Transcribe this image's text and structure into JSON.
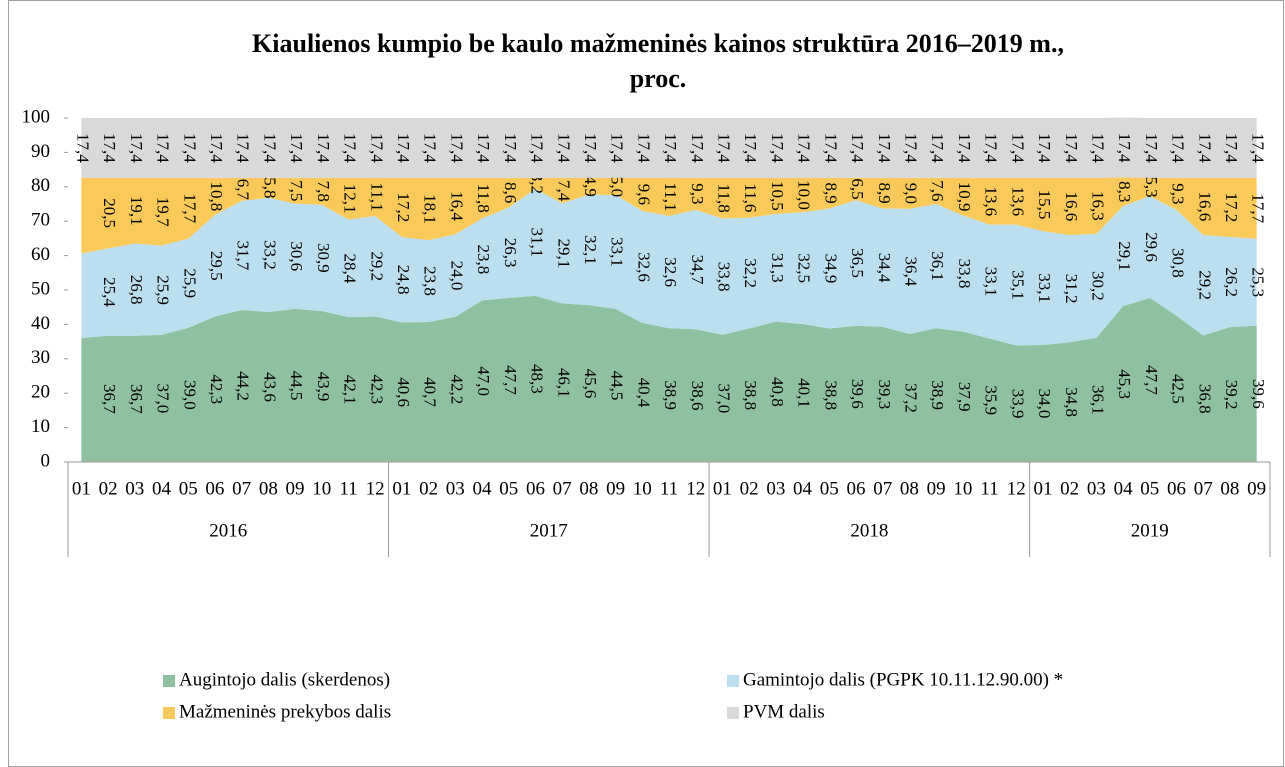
{
  "chart_data": {
    "type": "stacked-area",
    "title": "Kiaulienos kumpio be kaulo mažmeninės kainos struktūra 2016–2019 m.,",
    "subtitle": "proc.",
    "groups": [
      {
        "label": "2016",
        "categories": [
          "01",
          "02",
          "03",
          "04",
          "05",
          "06",
          "07",
          "08",
          "09",
          "10",
          "11",
          "12"
        ]
      },
      {
        "label": "2017",
        "categories": [
          "01",
          "02",
          "03",
          "04",
          "05",
          "06",
          "07",
          "08",
          "09",
          "10",
          "11",
          "12"
        ]
      },
      {
        "label": "2018",
        "categories": [
          "01",
          "02",
          "03",
          "04",
          "05",
          "06",
          "07",
          "08",
          "09",
          "10",
          "11",
          "12"
        ]
      },
      {
        "label": "2019",
        "categories": [
          "01",
          "02",
          "03",
          "04",
          "05",
          "06",
          "07",
          "08",
          "09"
        ]
      }
    ],
    "ylim": [
      0,
      100
    ],
    "yticks": [
      0,
      10,
      20,
      30,
      40,
      50,
      60,
      70,
      80,
      90,
      100
    ],
    "series": [
      {
        "name": "Augintojo dalis (skerdenos)",
        "color": "#8fc1a1",
        "values": [
          36.0,
          36.7,
          36.7,
          37.0,
          39.0,
          42.3,
          44.2,
          43.6,
          44.5,
          43.9,
          42.1,
          42.3,
          40.6,
          40.7,
          42.2,
          47.0,
          47.7,
          48.3,
          46.1,
          45.6,
          44.5,
          40.4,
          38.9,
          38.6,
          37.0,
          38.8,
          40.8,
          40.1,
          38.8,
          39.6,
          39.3,
          37.2,
          38.9,
          37.9,
          35.9,
          33.9,
          34.0,
          34.8,
          36.1,
          45.3,
          47.7,
          42.5,
          36.8,
          39.2,
          39.6
        ],
        "value_labels": [
          null,
          "36,7",
          "36,7",
          "37,0",
          "39,0",
          "42,3",
          "44,2",
          "43,6",
          "44,5",
          "43,9",
          "42,1",
          "42,3",
          "40,6",
          "40,7",
          "42,2",
          "47,0",
          "47,7",
          "48,3",
          "46,1",
          "45,6",
          "44,5",
          "40,4",
          "38,9",
          "38,6",
          "37,0",
          "38,8",
          "40,8",
          "40,1",
          "38,8",
          "39,6",
          "39,3",
          "37,2",
          "38,9",
          "37,9",
          "35,9",
          "33,9",
          "34,0",
          "34,8",
          "36,1",
          "45,3",
          "47,7",
          "42,5",
          "36,8",
          "39,2",
          "39,6"
        ]
      },
      {
        "name": "Gamintojo dalis (PGPK 10.11.12.90.00) *",
        "color": "#bcdff0",
        "values": [
          24.6,
          25.4,
          26.8,
          25.9,
          25.9,
          29.5,
          31.7,
          33.2,
          30.6,
          30.9,
          28.4,
          29.2,
          24.8,
          23.8,
          24.0,
          23.8,
          26.3,
          31.1,
          29.1,
          32.1,
          33.1,
          32.6,
          32.6,
          34.7,
          33.8,
          32.2,
          31.3,
          32.5,
          34.9,
          36.5,
          34.4,
          36.4,
          36.1,
          33.8,
          33.1,
          35.1,
          33.1,
          31.2,
          30.2,
          29.1,
          29.6,
          30.8,
          29.2,
          26.2,
          25.3
        ],
        "value_labels": [
          null,
          "25,4",
          "26,8",
          "25,9",
          "25,9",
          "29,5",
          "31,7",
          "33,2",
          "30,6",
          "30,9",
          "28,4",
          "29,2",
          "24,8",
          "23,8",
          "24,0",
          "23,8",
          "26,3",
          "31,1",
          "29,1",
          "32,1",
          "33,1",
          "32,6",
          "32,6",
          "34,7",
          "33,8",
          "32,2",
          "31,3",
          "32,5",
          "34,9",
          "36,5",
          "34,4",
          "36,4",
          "36,1",
          "33,8",
          "33,1",
          "35,1",
          "33,1",
          "31,2",
          "30,2",
          "29,1",
          "29,6",
          "30,8",
          "29,2",
          "26,2",
          "25,3"
        ]
      },
      {
        "name": "Mažmeninės prekybos dalis",
        "color": "#f9c95a",
        "values": [
          22.0,
          20.5,
          19.1,
          19.7,
          17.7,
          10.8,
          6.7,
          5.8,
          7.5,
          7.8,
          12.1,
          11.1,
          17.2,
          18.1,
          16.4,
          11.8,
          8.6,
          3.2,
          7.4,
          4.9,
          5.0,
          9.6,
          11.1,
          9.3,
          11.8,
          11.6,
          10.5,
          10.0,
          8.9,
          6.5,
          8.9,
          9.0,
          7.6,
          10.9,
          13.6,
          13.6,
          15.5,
          16.6,
          16.3,
          8.3,
          5.3,
          9.3,
          16.6,
          17.2,
          17.7
        ],
        "value_labels": [
          null,
          "20,5",
          "19,1",
          "19,7",
          "17,7",
          "10,8",
          "6,7",
          "5,8",
          "7,5",
          "7,8",
          "12,1",
          "11,1",
          "17,2",
          "18,1",
          "16,4",
          "11,8",
          "8,6",
          "3,2",
          "7,4",
          "4,9",
          "5,0",
          "9,6",
          "11,1",
          "9,3",
          "11,8",
          "11,6",
          "10,5",
          "10,0",
          "8,9",
          "6,5",
          "8,9",
          "9,0",
          "7,6",
          "10,9",
          "13,6",
          "13,6",
          "15,5",
          "16,6",
          "16,3",
          "8,3",
          "5,3",
          "9,3",
          "16,6",
          "17,2",
          "17,7"
        ]
      },
      {
        "name": "PVM dalis",
        "color": "#d9d9d9",
        "values": [
          17.4,
          17.4,
          17.4,
          17.4,
          17.4,
          17.4,
          17.4,
          17.4,
          17.4,
          17.4,
          17.4,
          17.4,
          17.4,
          17.4,
          17.4,
          17.4,
          17.4,
          17.4,
          17.4,
          17.4,
          17.4,
          17.4,
          17.4,
          17.4,
          17.4,
          17.4,
          17.4,
          17.4,
          17.4,
          17.4,
          17.4,
          17.4,
          17.4,
          17.4,
          17.4,
          17.4,
          17.4,
          17.4,
          17.4,
          17.4,
          17.4,
          17.4,
          17.4,
          17.4,
          17.4
        ],
        "value_labels": [
          "17,4",
          "17,4",
          "17,4",
          "17,4",
          "17,4",
          "17,4",
          "17,4",
          "17,4",
          "17,4",
          "17,4",
          "17,4",
          "17,4",
          "17,4",
          "17,4",
          "17,4",
          "17,4",
          "17,4",
          "17,4",
          "17,4",
          "17,4",
          "17,4",
          "17,4",
          "17,4",
          "17,4",
          "17,4",
          "17,4",
          "17,4",
          "17,4",
          "17,4",
          "17,4",
          "17,4",
          "17,4",
          "17,4",
          "17,4",
          "17,4",
          "17,4",
          "17,4",
          "17,4",
          "17,4",
          "17,4",
          "17,4",
          "17,4",
          "17,4",
          "17,4",
          "17,4"
        ]
      }
    ]
  }
}
